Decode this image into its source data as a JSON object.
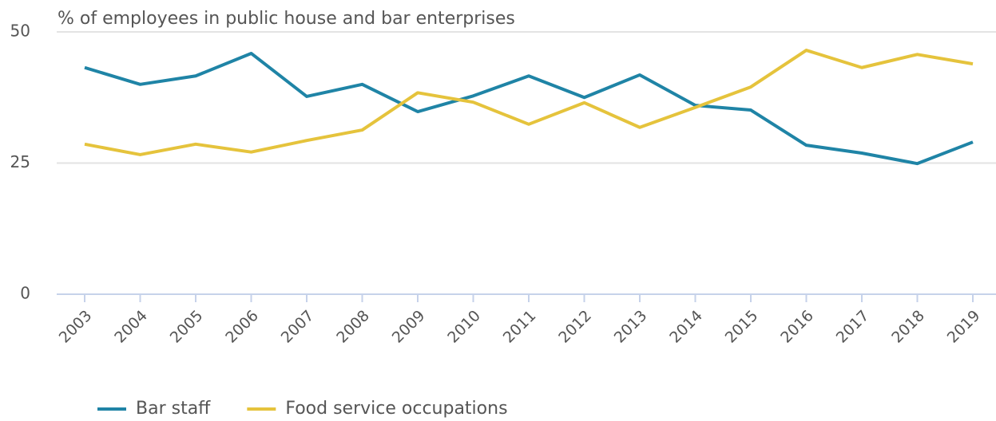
{
  "chart_data": {
    "type": "line",
    "y_label": "% of employees in public house and bar enterprises",
    "categories": [
      "2003",
      "2004",
      "2005",
      "2006",
      "2007",
      "2008",
      "2009",
      "2010",
      "2011",
      "2012",
      "2013",
      "2014",
      "2015",
      "2016",
      "2017",
      "2018",
      "2019"
    ],
    "series": [
      {
        "name": "Bar staff",
        "color": "#1f84a6",
        "values": [
          43.2,
          40.0,
          41.6,
          45.9,
          37.7,
          40.0,
          34.8,
          37.8,
          41.6,
          37.5,
          41.8,
          36.0,
          35.1,
          28.4,
          26.9,
          24.9,
          29.0
        ]
      },
      {
        "name": "Food service occupations",
        "color": "#e5c33c",
        "values": [
          28.6,
          26.6,
          28.6,
          27.1,
          29.3,
          31.3,
          38.4,
          36.6,
          32.4,
          36.5,
          31.8,
          35.6,
          39.5,
          46.5,
          43.2,
          45.7,
          43.9
        ]
      }
    ],
    "ylim": [
      0,
      50
    ],
    "yticks": [
      0,
      25,
      50
    ],
    "grid": true,
    "legend": "bottom-left"
  }
}
